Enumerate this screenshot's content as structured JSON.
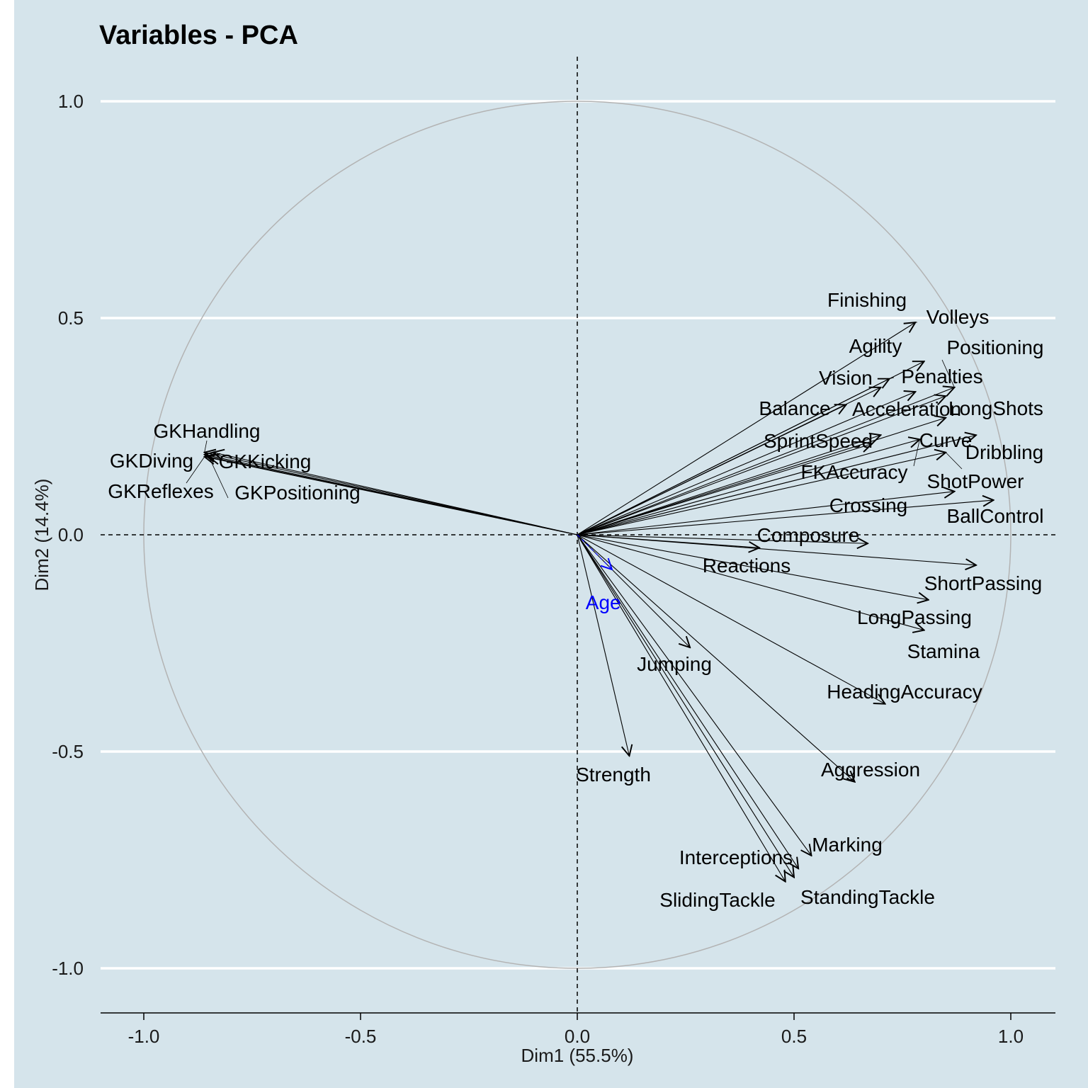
{
  "chart_data": {
    "type": "scatter",
    "subtype": "pca-variable-correlation-circle",
    "title": "Variables - PCA",
    "xlabel": "Dim1 (55.5%)",
    "ylabel": "Dim2 (14.4%)",
    "xlim": [
      -1.1,
      1.1
    ],
    "ylim": [
      -1.1,
      1.1
    ],
    "x_ticks": [
      "-1.0",
      "-0.5",
      "0.0",
      "0.5",
      "1.0"
    ],
    "y_ticks": [
      "1.0",
      "0.5",
      "0.0",
      "-0.5",
      "-1.0"
    ],
    "grid": true,
    "colors": {
      "panel_bg": "#d5e4eb",
      "gridline": "#ffffff",
      "circle": "#b3b3b3",
      "arrow": "#000000",
      "supplementary": "#0000ff"
    },
    "variables": [
      {
        "name": "Finishing",
        "x": 0.78,
        "y": 0.49
      },
      {
        "name": "Volleys",
        "x": 0.8,
        "y": 0.4
      },
      {
        "name": "Positioning",
        "x": 0.87,
        "y": 0.34
      },
      {
        "name": "Agility",
        "x": 0.72,
        "y": 0.36
      },
      {
        "name": "Vision",
        "x": 0.7,
        "y": 0.34
      },
      {
        "name": "Penalties",
        "x": 0.78,
        "y": 0.33
      },
      {
        "name": "Balance",
        "x": 0.62,
        "y": 0.3
      },
      {
        "name": "Acceleration",
        "x": 0.7,
        "y": 0.23
      },
      {
        "name": "LongShots",
        "x": 0.85,
        "y": 0.32
      },
      {
        "name": "SprintSpeed",
        "x": 0.68,
        "y": 0.21
      },
      {
        "name": "Curve",
        "x": 0.85,
        "y": 0.27
      },
      {
        "name": "Dribbling",
        "x": 0.92,
        "y": 0.23
      },
      {
        "name": "FKAccuracy",
        "x": 0.79,
        "y": 0.22
      },
      {
        "name": "ShotPower",
        "x": 0.85,
        "y": 0.19
      },
      {
        "name": "Crossing",
        "x": 0.87,
        "y": 0.1
      },
      {
        "name": "BallControl",
        "x": 0.96,
        "y": 0.08
      },
      {
        "name": "Composure",
        "x": 0.67,
        "y": -0.02
      },
      {
        "name": "Reactions",
        "x": 0.42,
        "y": -0.03
      },
      {
        "name": "ShortPassing",
        "x": 0.92,
        "y": -0.07
      },
      {
        "name": "LongPassing",
        "x": 0.81,
        "y": -0.15
      },
      {
        "name": "Stamina",
        "x": 0.8,
        "y": -0.22
      },
      {
        "name": "HeadingAccuracy",
        "x": 0.71,
        "y": -0.39
      },
      {
        "name": "Jumping",
        "x": 0.26,
        "y": -0.26
      },
      {
        "name": "Strength",
        "x": 0.12,
        "y": -0.51
      },
      {
        "name": "Aggression",
        "x": 0.64,
        "y": -0.57
      },
      {
        "name": "Marking",
        "x": 0.54,
        "y": -0.74
      },
      {
        "name": "Interceptions",
        "x": 0.51,
        "y": -0.77
      },
      {
        "name": "StandingTackle",
        "x": 0.5,
        "y": -0.79
      },
      {
        "name": "SlidingTackle",
        "x": 0.48,
        "y": -0.8
      },
      {
        "name": "GKHandling",
        "x": -0.86,
        "y": 0.19
      },
      {
        "name": "GKKicking",
        "x": -0.84,
        "y": 0.19
      },
      {
        "name": "GKDiving",
        "x": -0.86,
        "y": 0.185
      },
      {
        "name": "GKReflexes",
        "x": -0.86,
        "y": 0.18
      },
      {
        "name": "GKPositioning",
        "x": -0.85,
        "y": 0.18
      }
    ],
    "supplementary": [
      {
        "name": "Age",
        "x": 0.08,
        "y": -0.08,
        "label_x": 0.06,
        "label_y": -0.155
      }
    ]
  }
}
